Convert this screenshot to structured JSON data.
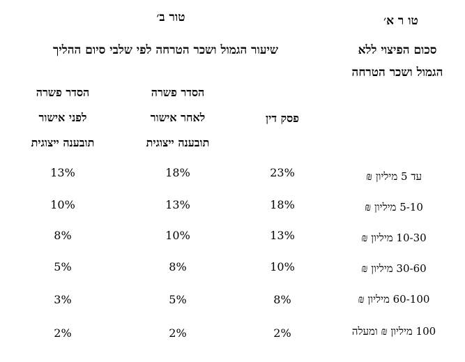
{
  "headers": {
    "col_a_title": "טו ר א׳",
    "col_a_line1": "סכום הפיצוי ללא",
    "col_a_line2": "הגמול ושכר הטרחה",
    "col_b_title": "טור ב׳",
    "col_b_desc": "שיעור הגמול ושכר הטרחה לפי שלבי סיום ההליך"
  },
  "subheaders": {
    "verdict": "פסק דין",
    "after_line1": "הסדר פשרה",
    "after_line2": "לאחר אישור",
    "after_line3": "תובענה ייצוגית",
    "before_line1": "הסדר פשרה",
    "before_line2": "לפני אישור",
    "before_line3": "תובענה ייצוגית"
  },
  "rows": [
    {
      "label": "עד 5 מיליון ₪",
      "verdict": "23%",
      "after": "18%",
      "before": "13%"
    },
    {
      "label": "5-10 מיליון ₪",
      "verdict": "18%",
      "after": "13%",
      "before": "10%"
    },
    {
      "label": "10-30 מיליון ₪",
      "verdict": "13%",
      "after": "10%",
      "before": "8%"
    },
    {
      "label": "30-60 מיליון ₪",
      "verdict": "10%",
      "after": "8%",
      "before": "5%"
    },
    {
      "label": "60-100 מיליון ₪",
      "verdict": "8%",
      "after": "5%",
      "before": "3%"
    },
    {
      "label": "100 מיליון ₪ ומעלה",
      "verdict": "2%",
      "after": "2%",
      "before": "2%"
    }
  ]
}
